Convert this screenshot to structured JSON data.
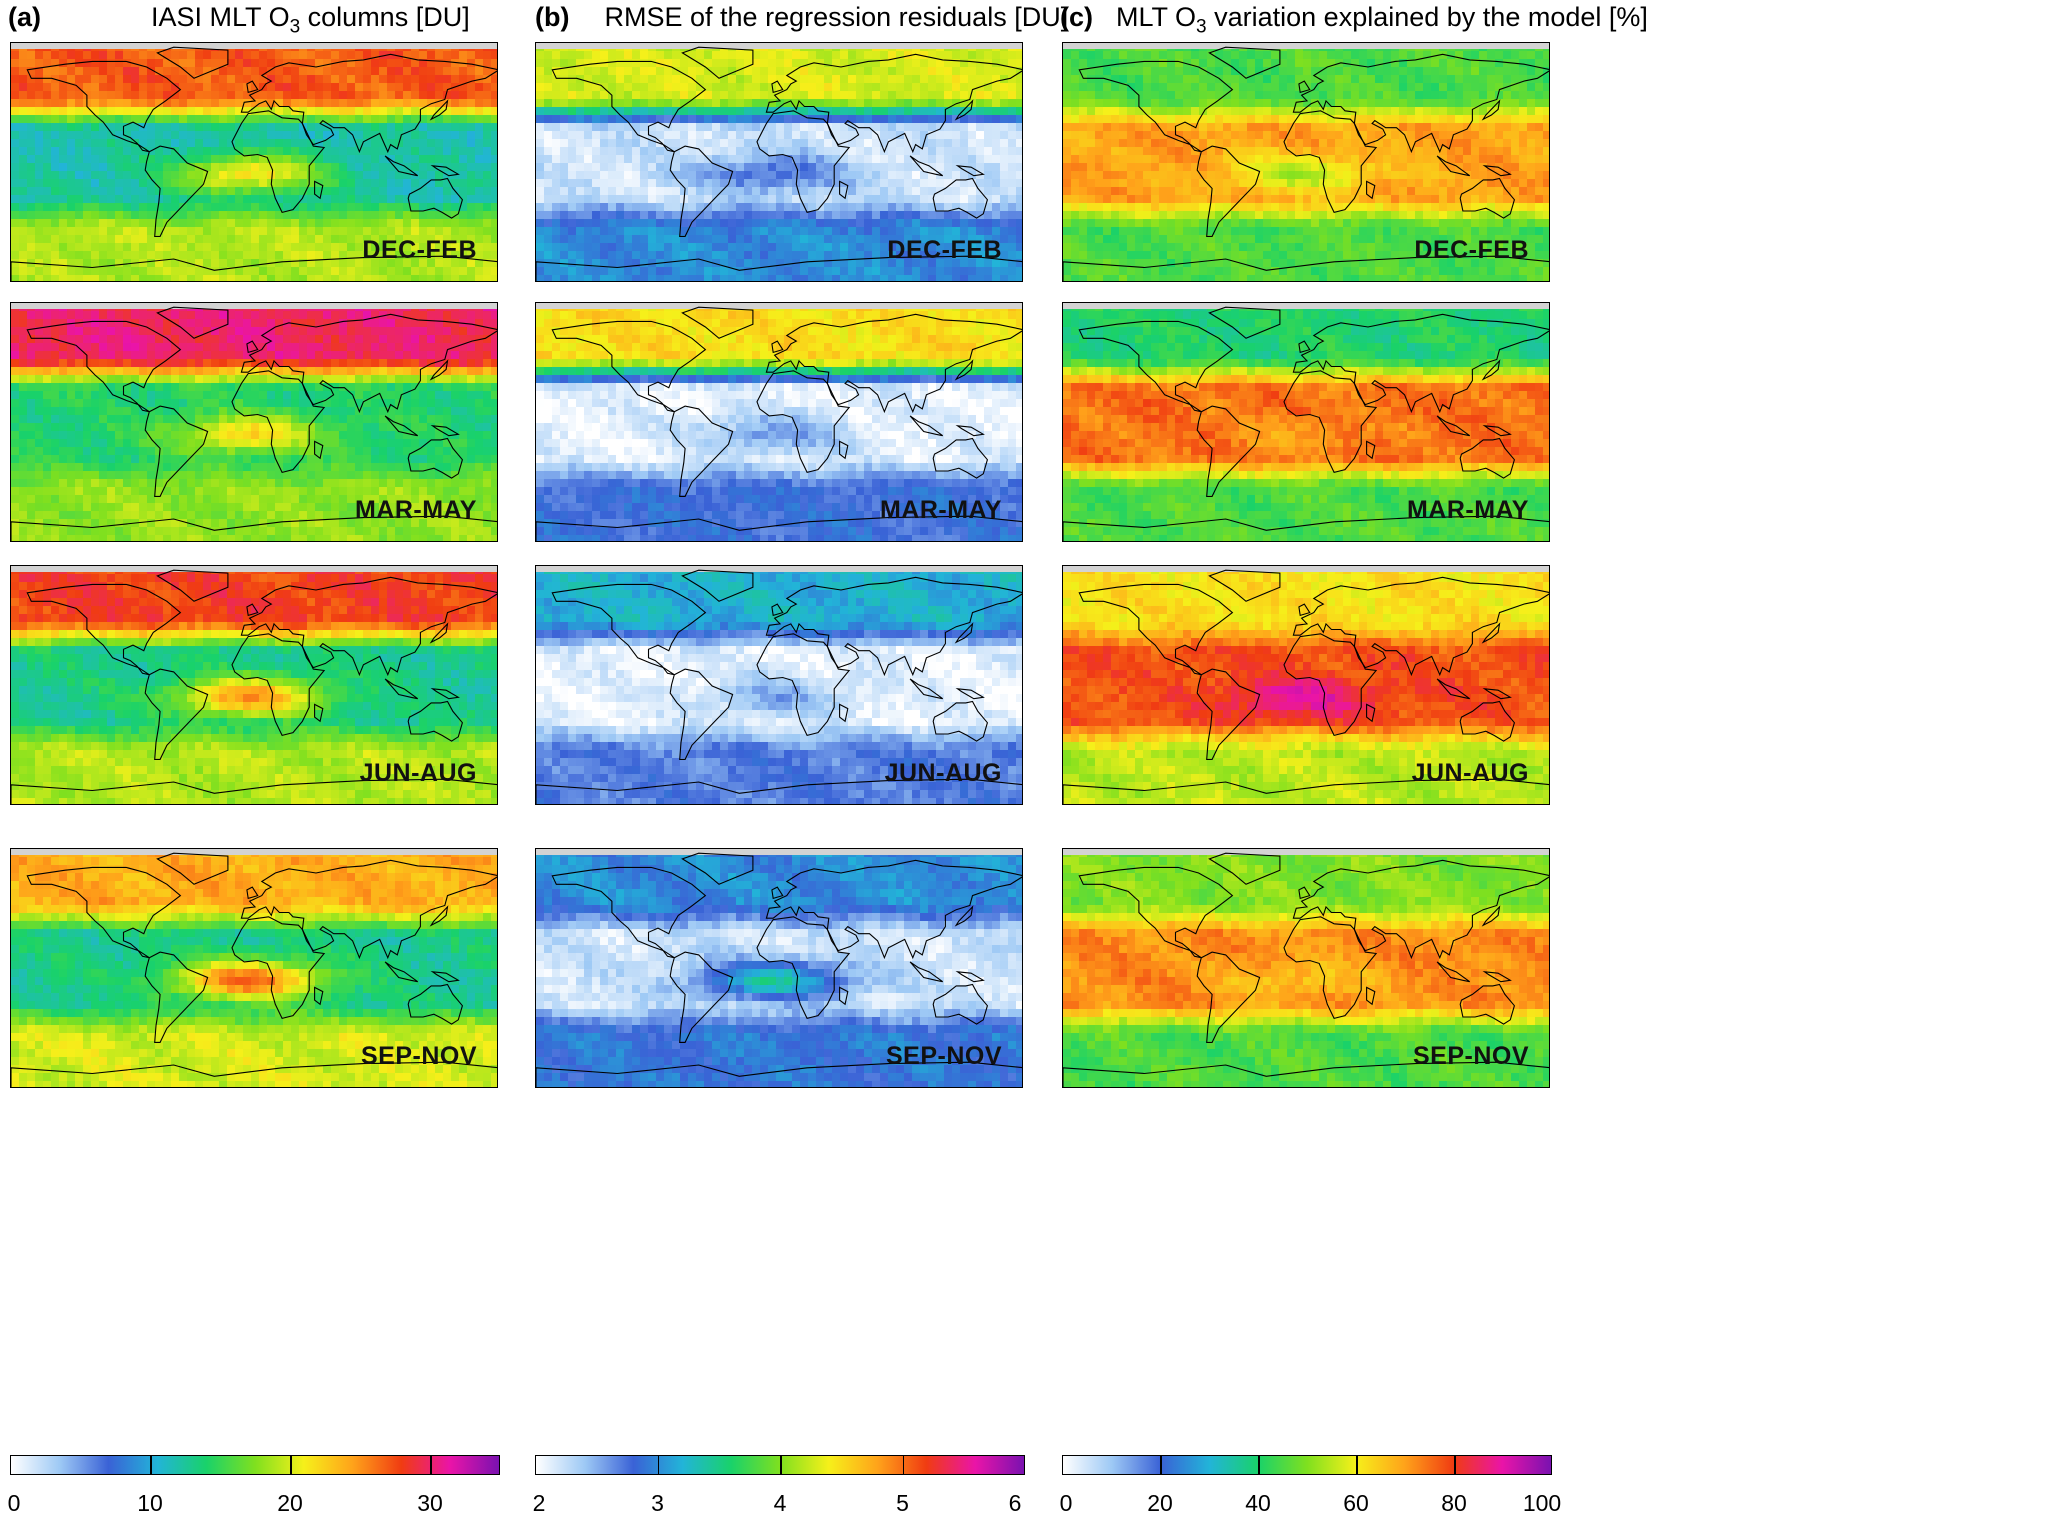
{
  "columns": [
    {
      "letter": "(a)",
      "title_pre": "IASI MLT O",
      "title_sub": "3",
      "title_post": " columns [DU]",
      "colorbar": {
        "min": 0,
        "max": 35,
        "ticks": [
          "0",
          "10",
          "20",
          "30"
        ],
        "tick_values": [
          0,
          10,
          20,
          30
        ]
      }
    },
    {
      "letter": "(b)",
      "title_pre": "RMSE of the regression residuals [DU]",
      "title_sub": "",
      "title_post": "",
      "colorbar": {
        "min": 2,
        "max": 6,
        "ticks": [
          "2",
          "3",
          "4",
          "5",
          "6"
        ],
        "tick_values": [
          2,
          3,
          4,
          5,
          6
        ]
      }
    },
    {
      "letter": "(c)",
      "title_pre": "MLT O",
      "title_sub": "3",
      "title_post": " variation explained by the model [%]",
      "colorbar": {
        "min": 0,
        "max": 100,
        "ticks": [
          "0",
          "20",
          "40",
          "60",
          "80",
          "100"
        ],
        "tick_values": [
          0,
          20,
          40,
          60,
          80,
          100
        ]
      }
    }
  ],
  "seasons": [
    "DEC-FEB",
    "MAR-MAY",
    "JUN-AUG",
    "SEP-NOV"
  ],
  "colormap": [
    "#ffffff",
    "#9ec9f5",
    "#3a62d6",
    "#22b4d8",
    "#19d26a",
    "#7fe01f",
    "#f6f01a",
    "#ffa31a",
    "#f03c12",
    "#ea14a8",
    "#7a12b0"
  ],
  "chart_data": [
    {
      "type": "heatmap",
      "panel": "a",
      "quantity": "IASI MLT O3 columns",
      "unit": "DU",
      "range": [
        0,
        35
      ],
      "description_by_season": {
        "DEC-FEB": {
          "northern_midlatitudes": 27,
          "tropics_pacific": 12,
          "tropical_atlantic": 22,
          "southern_midlatitudes": 19
        },
        "MAR-MAY": {
          "northern_midlatitudes": 30,
          "tropics_pacific": 14,
          "tropical_atlantic": 22,
          "southern_midlatitudes": 18
        },
        "JUN-AUG": {
          "northern_midlatitudes": 28,
          "tropics_pacific": 13,
          "tropical_atlantic": 25,
          "southern_midlatitudes": 19
        },
        "SEP-NOV": {
          "northern_midlatitudes": 24,
          "tropics_pacific": 13,
          "tropical_atlantic": 27,
          "southern_midlatitudes": 20
        }
      }
    },
    {
      "type": "heatmap",
      "panel": "b",
      "quantity": "RMSE of the regression residuals",
      "unit": "DU",
      "range": [
        2,
        6
      ],
      "description_by_season": {
        "DEC-FEB": {
          "northern_midlatitudes": 4.3,
          "tropics_pacific": 2.2,
          "tropical_atlantic": 2.8,
          "southern_midlatitudes": 3.0
        },
        "MAR-MAY": {
          "northern_midlatitudes": 4.5,
          "tropics_pacific": 2.1,
          "tropical_atlantic": 2.6,
          "southern_midlatitudes": 2.8
        },
        "JUN-AUG": {
          "northern_midlatitudes": 3.2,
          "tropics_pacific": 2.1,
          "tropical_atlantic": 2.5,
          "southern_midlatitudes": 2.7
        },
        "SEP-NOV": {
          "northern_midlatitudes": 3.0,
          "tropics_pacific": 2.2,
          "tropical_atlantic": 3.4,
          "southern_midlatitudes": 2.9
        }
      }
    },
    {
      "type": "heatmap",
      "panel": "c",
      "quantity": "MLT O3 variation explained by the model",
      "unit": "%",
      "range": [
        0,
        100
      ],
      "description_by_season": {
        "DEC-FEB": {
          "northern_midlatitudes": 45,
          "tropics_pacific": 70,
          "tropical_atlantic": 55,
          "southern_midlatitudes": 45
        },
        "MAR-MAY": {
          "northern_midlatitudes": 40,
          "tropics_pacific": 75,
          "tropical_atlantic": 70,
          "southern_midlatitudes": 45
        },
        "JUN-AUG": {
          "northern_midlatitudes": 62,
          "tropics_pacific": 78,
          "tropical_atlantic": 90,
          "southern_midlatitudes": 55
        },
        "SEP-NOV": {
          "northern_midlatitudes": 50,
          "tropics_pacific": 72,
          "tropical_atlantic": 65,
          "southern_midlatitudes": 45
        }
      }
    }
  ]
}
